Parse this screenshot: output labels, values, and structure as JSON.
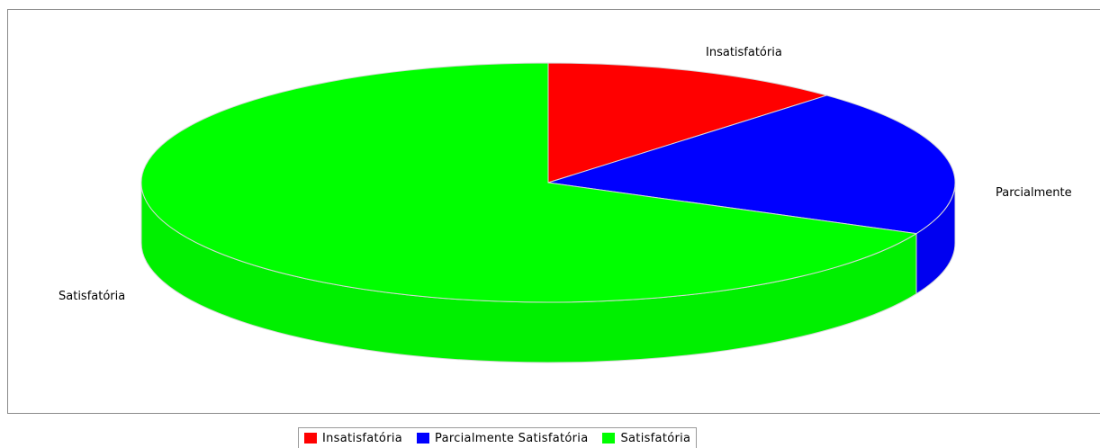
{
  "chart_data": {
    "type": "pie",
    "style": "3d",
    "categories": [
      "Insatisfatória",
      "Parcialmente Satisfatória",
      "Satisfatória"
    ],
    "values": [
      12,
      20,
      68
    ],
    "unit": "percent",
    "slice_labels": [
      "Insatisfatória",
      "Parcialmente",
      "Satisfatória"
    ],
    "colors": [
      "#ff0000",
      "#0000ff",
      "#00ff00"
    ],
    "legend_position": "bottom",
    "legend": [
      {
        "label": "Insatisfatória",
        "color": "#ff0000"
      },
      {
        "label": "Parcialmente Satisfatória",
        "color": "#0000ff"
      },
      {
        "label": "Satisfatória",
        "color": "#00ff00"
      }
    ]
  }
}
